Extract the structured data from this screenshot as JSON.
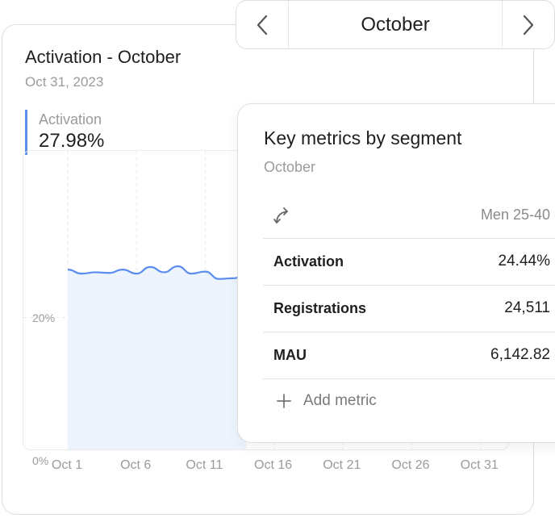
{
  "card": {
    "title": "Activation - October",
    "date": "Oct 31, 2023",
    "kpi_label": "Activation",
    "kpi_value": "27.98%"
  },
  "chart_data": {
    "type": "area",
    "y_ticks": [
      "20%",
      "0%"
    ],
    "x_ticks": [
      "Oct 1",
      "Oct 6",
      "Oct 11",
      "Oct 16",
      "Oct 21",
      "Oct 26",
      "Oct 31"
    ],
    "x": [
      1,
      2,
      3,
      4,
      5,
      6,
      7,
      8,
      9,
      10,
      11,
      12,
      13,
      14
    ],
    "values": [
      27.2,
      26.6,
      26.8,
      26.7,
      27.2,
      26.6,
      27.6,
      26.8,
      27.7,
      26.6,
      26.9,
      25.8,
      25.9,
      26.4
    ],
    "ylim": [
      0,
      45
    ],
    "color": "#5b8def",
    "grid": true
  },
  "nav": {
    "month": "October",
    "prev_icon": "chevron-left-icon",
    "next_icon": "chevron-right-icon"
  },
  "panel": {
    "title": "Key metrics by segment",
    "subtitle": "October",
    "segment": "Men 25-40",
    "swap_icon": "swap-arrows-icon",
    "metrics": [
      {
        "name": "Activation",
        "value": "24.44%"
      },
      {
        "name": "Registrations",
        "value": "24,511"
      },
      {
        "name": "MAU",
        "value": "6,142.82"
      }
    ],
    "add_label": "Add metric"
  }
}
